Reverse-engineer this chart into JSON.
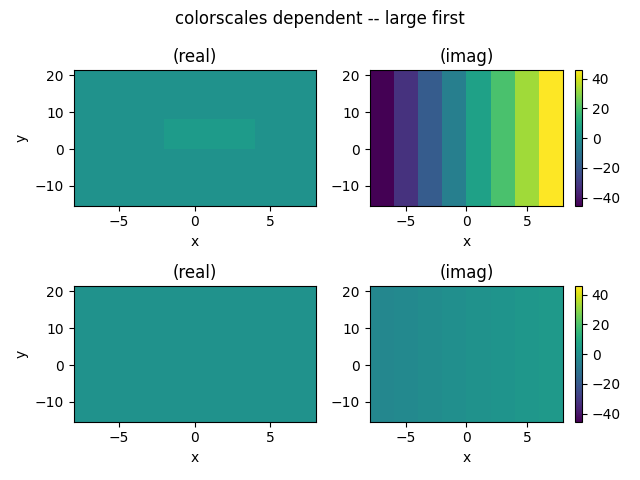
{
  "title": "colorscales dependent -- large first",
  "x_range": [
    -7.0,
    7.0
  ],
  "y_range": [
    -15,
    21
  ],
  "nx": 8,
  "ny": 50,
  "colormap": "viridis",
  "colorbar_ticks": [
    -40,
    -20,
    0,
    20,
    40
  ],
  "xlabel": "x",
  "ylabel": "y",
  "subplot_titles": [
    "(real)",
    "(imag)",
    "(real)",
    "(imag)"
  ],
  "large_real_base": 1.0,
  "large_real_bump": 3.0,
  "large_real_bump_xlim": [
    -2,
    3
  ],
  "large_real_bump_ylim": [
    0,
    8
  ],
  "large_imag_scale": 6.5,
  "small_real_base": 1.0,
  "small_imag_scale": 0.5,
  "figsize": [
    6.4,
    4.8
  ],
  "dpi": 100
}
